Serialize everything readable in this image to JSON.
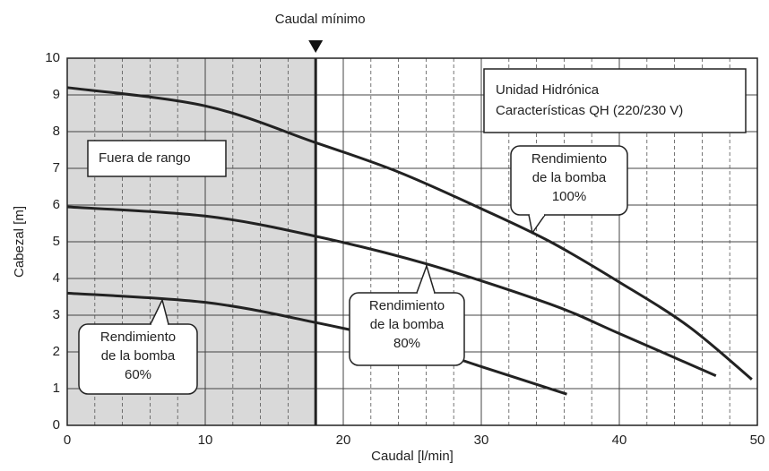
{
  "chart_data": {
    "type": "line",
    "xlabel": "Caudal [l/min]",
    "ylabel": "Cabezal [m]",
    "xlim": [
      0,
      50
    ],
    "ylim": [
      0,
      10
    ],
    "xticks": [
      0,
      10,
      20,
      30,
      40,
      50
    ],
    "xminorticks": [
      2,
      4,
      6,
      8,
      12,
      14,
      16,
      18,
      22,
      24,
      26,
      28,
      32,
      34,
      36,
      38,
      42,
      44,
      46,
      48
    ],
    "yticks": [
      0,
      1,
      2,
      3,
      4,
      5,
      6,
      7,
      8,
      9,
      10
    ],
    "grid": true,
    "min_flow": {
      "value": 18,
      "label": "Caudal mínimo",
      "region_label": "Fuera de rango",
      "color": "#d9d9d9"
    },
    "info_box": [
      "Unidad Hidrónica",
      "Características QH (220/230 V)"
    ],
    "series": [
      {
        "color": "#222222",
        "x": [
          0,
          10,
          18,
          24,
          30,
          35,
          40,
          45,
          49.6
        ],
        "values": [
          9.2,
          8.7,
          7.7,
          6.9,
          5.9,
          5.0,
          3.9,
          2.7,
          1.25
        ],
        "label_lines": [
          "Rendimiento",
          "de la bomba",
          "100%"
        ]
      },
      {
        "color": "#222222",
        "x": [
          0,
          10,
          18,
          26,
          35,
          40,
          47
        ],
        "values": [
          5.95,
          5.7,
          5.15,
          4.4,
          3.3,
          2.5,
          1.35
        ],
        "label_lines": [
          "Rendimiento",
          "de la bomba",
          "80%"
        ]
      },
      {
        "color": "#222222",
        "x": [
          0,
          10,
          18,
          25,
          30,
          36.2
        ],
        "values": [
          3.6,
          3.35,
          2.8,
          2.2,
          1.6,
          0.85
        ],
        "label_lines": [
          "Rendimiento",
          "de la bomba",
          "60%"
        ]
      }
    ]
  }
}
